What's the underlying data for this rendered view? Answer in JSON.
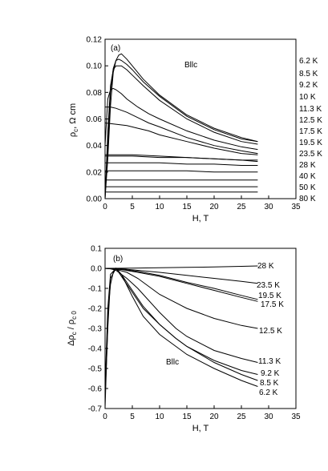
{
  "chart_data": [
    {
      "type": "line",
      "panel": "(a)",
      "annotation": "Bllc",
      "xlabel": "H, T",
      "ylabel_main": "ρ",
      "ylabel_sub": "c",
      "ylabel_rest": ",   Ω cm",
      "xlim": [
        0,
        35
      ],
      "ylim": [
        0.0,
        0.12
      ],
      "xticks": [
        "0",
        "5",
        "10",
        "15",
        "20",
        "25",
        "30",
        "35"
      ],
      "yticks": [
        "0.00",
        "0.02",
        "0.04",
        "0.06",
        "0.08",
        "0.10",
        "0.12"
      ],
      "grid": false,
      "series": [
        {
          "name": "6.2 K",
          "x": [
            0,
            0.5,
            1,
            1.5,
            2,
            2.5,
            3,
            4,
            5,
            7,
            10,
            15,
            20,
            25,
            28
          ],
          "y": [
            0,
            0.03,
            0.07,
            0.095,
            0.104,
            0.108,
            0.109,
            0.105,
            0.1,
            0.09,
            0.078,
            0.063,
            0.053,
            0.046,
            0.043
          ]
        },
        {
          "name": "8.5 K",
          "x": [
            0,
            0.5,
            1,
            1.5,
            2,
            2.5,
            3,
            4,
            5,
            7,
            10,
            15,
            20,
            25,
            28
          ],
          "y": [
            0,
            0.04,
            0.08,
            0.098,
            0.104,
            0.105,
            0.104,
            0.101,
            0.097,
            0.088,
            0.077,
            0.062,
            0.052,
            0.045,
            0.043
          ]
        },
        {
          "name": "9.2 K",
          "x": [
            0,
            0.5,
            1,
            1.5,
            2,
            3,
            4,
            5,
            7,
            10,
            15,
            20,
            25,
            28
          ],
          "y": [
            0,
            0.05,
            0.085,
            0.097,
            0.1,
            0.1,
            0.097,
            0.093,
            0.085,
            0.074,
            0.06,
            0.05,
            0.043,
            0.041
          ]
        },
        {
          "name": "10 K",
          "x": [
            0,
            0.5,
            1,
            1.5,
            2,
            3,
            4,
            6,
            8,
            10,
            15,
            20,
            25,
            28
          ],
          "y": [
            0.04,
            0.075,
            0.082,
            0.083,
            0.082,
            0.079,
            0.075,
            0.069,
            0.064,
            0.06,
            0.051,
            0.044,
            0.039,
            0.037
          ]
        },
        {
          "name": "11.3 K",
          "x": [
            0,
            1,
            2,
            4,
            6,
            8,
            10,
            15,
            20,
            25,
            28
          ],
          "y": [
            0.069,
            0.069,
            0.068,
            0.065,
            0.061,
            0.057,
            0.054,
            0.046,
            0.04,
            0.036,
            0.034
          ]
        },
        {
          "name": "12.5 K",
          "x": [
            0,
            2,
            4,
            6,
            8,
            10,
            15,
            20,
            25,
            28
          ],
          "y": [
            0.057,
            0.056,
            0.055,
            0.053,
            0.051,
            0.048,
            0.043,
            0.038,
            0.034,
            0.033
          ]
        },
        {
          "name": "17.5 K",
          "x": [
            0,
            5,
            10,
            15,
            20,
            25,
            28
          ],
          "y": [
            0.033,
            0.033,
            0.032,
            0.031,
            0.03,
            0.029,
            0.028
          ]
        },
        {
          "name": "19.5 K",
          "x": [
            0,
            5,
            10,
            15,
            20,
            25,
            28
          ],
          "y": [
            0.032,
            0.032,
            0.031,
            0.031,
            0.03,
            0.029,
            0.029
          ]
        },
        {
          "name": "23.5 K",
          "x": [
            0,
            5,
            10,
            15,
            20,
            25,
            28
          ],
          "y": [
            0.027,
            0.027,
            0.027,
            0.026,
            0.026,
            0.025,
            0.025
          ]
        },
        {
          "name": "28 K",
          "x": [
            0,
            5,
            10,
            15,
            20,
            25,
            28
          ],
          "y": [
            0.021,
            0.021,
            0.021,
            0.021,
            0.02,
            0.02,
            0.02
          ]
        },
        {
          "name": "40 K",
          "x": [
            0,
            5,
            10,
            15,
            20,
            25,
            28
          ],
          "y": [
            0.014,
            0.014,
            0.014,
            0.014,
            0.014,
            0.014,
            0.014
          ]
        },
        {
          "name": "50 K",
          "x": [
            0,
            5,
            10,
            15,
            20,
            25,
            28
          ],
          "y": [
            0.009,
            0.009,
            0.009,
            0.009,
            0.009,
            0.009,
            0.009
          ]
        },
        {
          "name": "80 K",
          "x": [
            0,
            5,
            10,
            15,
            20,
            25,
            28
          ],
          "y": [
            0.005,
            0.005,
            0.005,
            0.005,
            0.005,
            0.005,
            0.005
          ]
        }
      ]
    },
    {
      "type": "line",
      "panel": "(b)",
      "annotation": "Bllc",
      "xlabel": "H, T",
      "ylabel_main": "Δρ",
      "ylabel_sub": "c",
      "ylabel_rest": " / ρ",
      "ylabel_sub2": "c 0",
      "xlim": [
        0,
        35
      ],
      "ylim": [
        -0.7,
        0.1
      ],
      "xticks": [
        "0",
        "5",
        "10",
        "15",
        "20",
        "25",
        "30",
        "35"
      ],
      "yticks": [
        "0.1",
        "0.0",
        "-0.1",
        "-0.2",
        "-0.3",
        "-0.4",
        "-0.5",
        "-0.6",
        "-0.7"
      ],
      "grid": false,
      "series": [
        {
          "name": "28 K",
          "x": [
            0,
            5,
            10,
            15,
            20,
            25,
            28
          ],
          "y": [
            0.0,
            0.001,
            0.003,
            0.005,
            0.007,
            0.01,
            0.012
          ]
        },
        {
          "name": "23.5 K",
          "x": [
            0,
            3,
            6,
            10,
            15,
            20,
            25,
            28
          ],
          "y": [
            0.0,
            -0.002,
            -0.01,
            -0.02,
            -0.035,
            -0.05,
            -0.065,
            -0.075
          ]
        },
        {
          "name": "19.5 K",
          "x": [
            0,
            3,
            6,
            10,
            15,
            20,
            25,
            28
          ],
          "y": [
            0.0,
            -0.005,
            -0.015,
            -0.035,
            -0.07,
            -0.1,
            -0.135,
            -0.155
          ]
        },
        {
          "name": "17.5 K",
          "x": [
            0,
            3,
            6,
            10,
            15,
            20,
            25,
            28
          ],
          "y": [
            0.0,
            -0.006,
            -0.02,
            -0.04,
            -0.075,
            -0.11,
            -0.145,
            -0.165
          ]
        },
        {
          "name": "12.5 K",
          "x": [
            0,
            2,
            4,
            6,
            8,
            10,
            15,
            20,
            25,
            28
          ],
          "y": [
            0.0,
            -0.005,
            -0.02,
            -0.05,
            -0.09,
            -0.13,
            -0.2,
            -0.25,
            -0.285,
            -0.3
          ]
        },
        {
          "name": "11.3 K",
          "x": [
            0,
            1,
            2,
            4,
            6,
            8,
            10,
            13,
            15,
            20,
            25,
            28
          ],
          "y": [
            0.0,
            -0.002,
            -0.01,
            -0.05,
            -0.1,
            -0.16,
            -0.22,
            -0.3,
            -0.34,
            -0.41,
            -0.45,
            -0.47
          ]
        },
        {
          "name": "9.2 K",
          "x": [
            0,
            0.5,
            1,
            2,
            3,
            5,
            7,
            10,
            13,
            15,
            20,
            25,
            28
          ],
          "y": [
            -0.6,
            -0.2,
            -0.03,
            0.0,
            -0.03,
            -0.11,
            -0.19,
            -0.28,
            -0.35,
            -0.39,
            -0.46,
            -0.51,
            -0.53
          ]
        },
        {
          "name": "8.5 K",
          "x": [
            0,
            0.5,
            1,
            2,
            3,
            5,
            7,
            10,
            13,
            15,
            20,
            25,
            28
          ],
          "y": [
            -0.65,
            -0.3,
            -0.05,
            0.0,
            -0.04,
            -0.12,
            -0.2,
            -0.28,
            -0.35,
            -0.39,
            -0.47,
            -0.53,
            -0.56
          ]
        },
        {
          "name": "6.2 K",
          "x": [
            0,
            0.3,
            0.6,
            1,
            1.5,
            2,
            3,
            5,
            7,
            10,
            13,
            15,
            20,
            25,
            28
          ],
          "y": [
            -0.7,
            -0.45,
            -0.2,
            -0.08,
            -0.02,
            0.0,
            -0.03,
            -0.14,
            -0.24,
            -0.33,
            -0.39,
            -0.43,
            -0.5,
            -0.56,
            -0.59
          ]
        }
      ]
    }
  ]
}
